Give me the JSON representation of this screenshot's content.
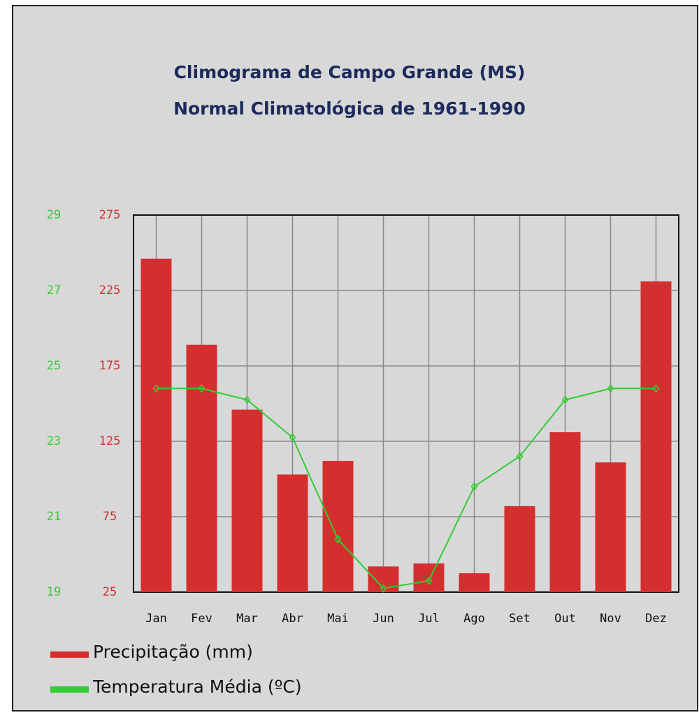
{
  "chart_data": {
    "type": "bar",
    "title": "Climograma de Campo Grande (MS)",
    "subtitle": "Normal Climatológica de 1961-1990",
    "categories": [
      "Jan",
      "Fev",
      "Mar",
      "Abr",
      "Mai",
      "Jun",
      "Jul",
      "Ago",
      "Set",
      "Out",
      "Nov",
      "Dez"
    ],
    "series": [
      {
        "name": "Precipitação (mm)",
        "color": "#d42f2f",
        "type": "bar",
        "axis": "y",
        "values": [
          246,
          189,
          146,
          103,
          112,
          42,
          44,
          37.5,
          82,
          131,
          111,
          231
        ]
      },
      {
        "name": "Temperatura Média (ºC)",
        "color": "#33cc33",
        "type": "line",
        "axis": "y2",
        "values": [
          24.4,
          24.4,
          24.1,
          23.1,
          20.4,
          19.1,
          19.3,
          21.8,
          22.6,
          24.1,
          24.4,
          24.4
        ]
      }
    ],
    "ylim": [
      25,
      275
    ],
    "yticks": [
      25,
      75,
      125,
      175,
      225,
      275
    ],
    "y2lim": [
      19,
      29
    ],
    "y2ticks": [
      19,
      21,
      23,
      25,
      27,
      29
    ],
    "grid": true,
    "legend": "bottom-left"
  }
}
